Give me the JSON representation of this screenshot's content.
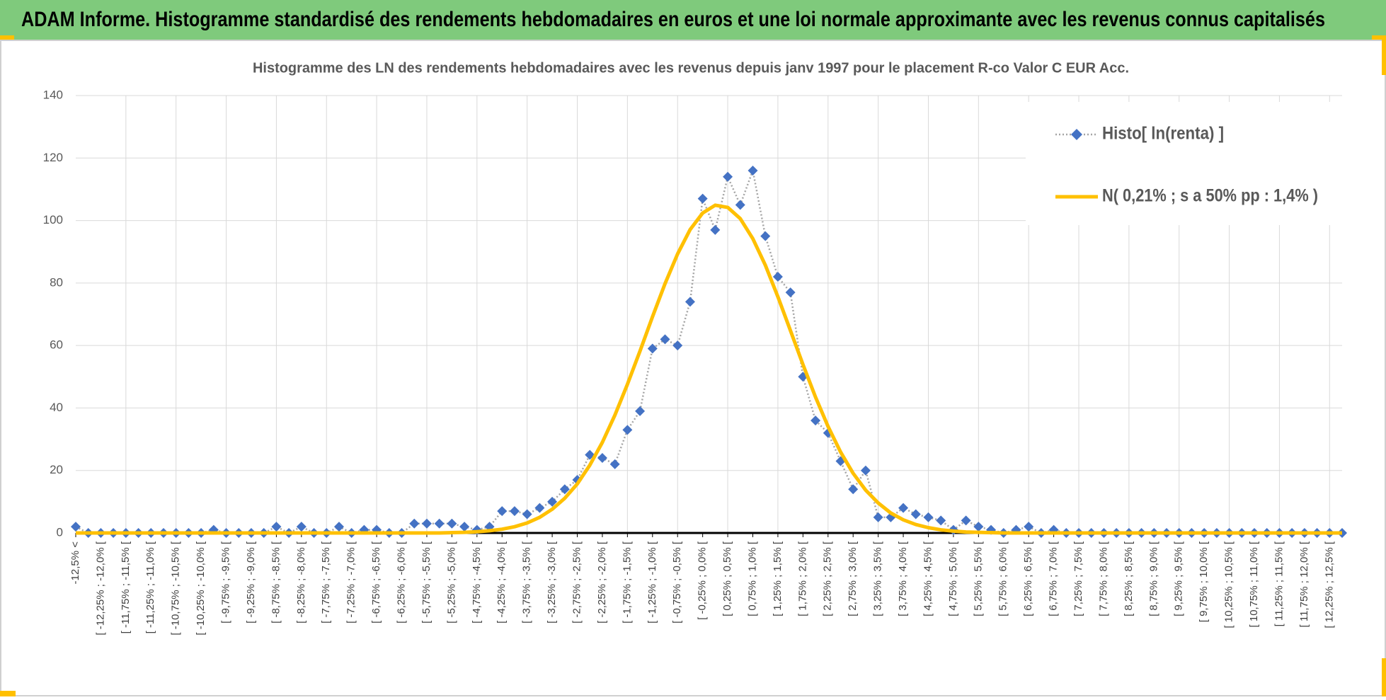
{
  "header": {
    "title": "ADAM Informe. Histogramme standardisé des rendements hebdomadaires en euros et une loi normale approximante avec les revenus connus capitalisés"
  },
  "chart_data": {
    "type": "line",
    "title": "Histogramme des LN des rendements hebdomadaires avec les revenus depuis janv 1997 pour le placement R-co Valor C EUR Acc.",
    "categories": [
      "-12,5% <",
      null,
      "[ -12,25% ; -12,0% [",
      null,
      "[ -11,75% ; -11,5% [",
      null,
      "[ -11,25% ; -11,0% [",
      null,
      "[ -10,75% ; -10,5% [",
      null,
      "[ -10,25% ; -10,0% [",
      null,
      "[ -9,75% ; -9,5% [",
      null,
      "[ -9,25% ; -9,0% [",
      null,
      "[ -8,75% ; -8,5% [",
      null,
      "[ -8,25% ; -8,0% [",
      null,
      "[ -7,75% ; -7,5% [",
      null,
      "[ -7,25% ; -7,0% [",
      null,
      "[ -6,75% ; -6,5% [",
      null,
      "[ -6,25% ; -6,0% [",
      null,
      "[ -5,75% ; -5,5% [",
      null,
      "[ -5,25% ; -5,0% [",
      null,
      "[ -4,75% ; -4,5% [",
      null,
      "[ -4,25% ; -4,0% [",
      null,
      "[ -3,75% ; -3,5% [",
      null,
      "[ -3,25% ; -3,0% [",
      null,
      "[ -2,75% ; -2,5% [",
      null,
      "[ -2,25% ; -2,0% [",
      null,
      "[ -1,75% ; -1,5% [",
      null,
      "[ -1,25% ; -1,0% [",
      null,
      "[ -0,75% ; -0,5% [",
      null,
      "[ -0,25% ; 0,0% [",
      null,
      "[ 0,25% ; 0,5% [",
      null,
      "[ 0,75% ; 1,0% [",
      null,
      "[ 1,25% ; 1,5% [",
      null,
      "[ 1,75% ; 2,0% [",
      null,
      "[ 2,25% ; 2,5% [",
      null,
      "[ 2,75% ; 3,0% [",
      null,
      "[ 3,25% ; 3,5% [",
      null,
      "[ 3,75% ; 4,0% [",
      null,
      "[ 4,25% ; 4,5% [",
      null,
      "[ 4,75% ; 5,0% [",
      null,
      "[ 5,25% ; 5,5% [",
      null,
      "[ 5,75% ; 6,0% [",
      null,
      "[ 6,25% ; 6,5% [",
      null,
      "[ 6,75% ; 7,0% [",
      null,
      "[ 7,25% ; 7,5% [",
      null,
      "[ 7,75% ; 8,0% [",
      null,
      "[ 8,25% ; 8,5% [",
      null,
      "[ 8,75% ; 9,0% [",
      null,
      "[ 9,25% ; 9,5% [",
      null,
      "[ 9,75% ; 10,0% [",
      null,
      "[ 10,25% ; 10,5% [",
      null,
      "[ 10,75% ; 11,0% [",
      null,
      "[ 11,25% ; 11,5% [",
      null,
      "[ 11,75% ; 12,0% [",
      null,
      "[ 12,25% ; 12,5% [",
      null
    ],
    "series": [
      {
        "name": "Histo[ ln(renta) ]",
        "color": "#4472c4",
        "line_color": "#a5a5a5",
        "values": [
          2,
          0,
          0,
          0,
          0,
          0,
          0,
          0,
          0,
          0,
          0,
          1,
          0,
          0,
          0,
          0,
          2,
          0,
          2,
          0,
          0,
          2,
          0,
          1,
          1,
          0,
          0,
          3,
          3,
          3,
          3,
          2,
          1,
          2,
          7,
          7,
          6,
          8,
          10,
          14,
          17,
          25,
          24,
          22,
          33,
          39,
          59,
          62,
          60,
          74,
          107,
          97,
          114,
          105,
          116,
          95,
          82,
          77,
          50,
          36,
          32,
          23,
          14,
          20,
          5,
          5,
          8,
          6,
          5,
          4,
          1,
          4,
          2,
          1,
          0,
          1,
          2,
          0,
          1,
          0,
          0,
          0,
          0,
          0,
          0,
          0,
          0,
          0,
          0,
          0,
          0,
          0,
          0,
          0,
          0,
          0,
          0,
          0,
          0,
          0,
          0,
          0
        ]
      },
      {
        "name": "N( 0,21% ; s a 50% pp : 1,4% )",
        "color": "#ffc000",
        "values": [
          0,
          0,
          0,
          0,
          0,
          0,
          0,
          0,
          0,
          0,
          0,
          0,
          0,
          0,
          0,
          0,
          0,
          0,
          0,
          0,
          0,
          0,
          0,
          0,
          0,
          0,
          0,
          0,
          0,
          0,
          0.1,
          0.2,
          0.4,
          0.7,
          1.2,
          2.0,
          3.2,
          5.0,
          7.6,
          11.1,
          15.7,
          21.7,
          29.0,
          37.7,
          47.6,
          58.2,
          69.2,
          79.8,
          89.3,
          97.1,
          102.4,
          104.9,
          104.2,
          100.6,
          94.2,
          85.7,
          75.6,
          64.8,
          53.9,
          43.5,
          34.1,
          25.9,
          19.1,
          13.7,
          9.6,
          6.4,
          4.2,
          2.7,
          1.7,
          1.0,
          0.6,
          0.3,
          0.2,
          0.1,
          0,
          0,
          0,
          0,
          0,
          0,
          0,
          0,
          0,
          0,
          0,
          0,
          0,
          0,
          0,
          0,
          0,
          0,
          0,
          0,
          0,
          0,
          0,
          0,
          0,
          0,
          0,
          0
        ]
      }
    ],
    "ylim": [
      0,
      140
    ],
    "yticks": [
      0,
      20,
      40,
      60,
      80,
      100,
      120,
      140
    ],
    "grid": true,
    "legend": "upper right"
  }
}
